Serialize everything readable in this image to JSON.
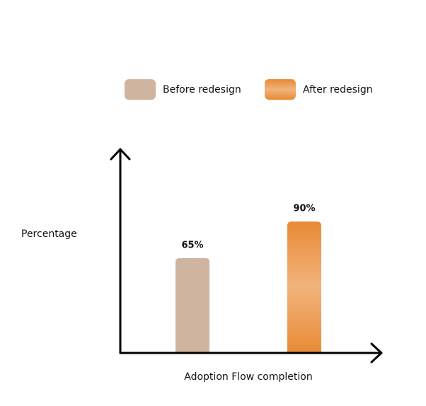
{
  "chart_data": {
    "type": "bar",
    "x_label": "Adoption Flow completion",
    "y_label": "Percentage",
    "categories": [
      null
    ],
    "series": [
      {
        "name": "Before redesign",
        "color": "#cfb5a0",
        "values": [
          65
        ],
        "value_labels": [
          "65%"
        ]
      },
      {
        "name": "After redesign",
        "color": "#e98a35",
        "values": [
          90
        ],
        "value_labels": [
          "90%"
        ]
      }
    ],
    "ylim": [
      0,
      140
    ],
    "legend": "top",
    "grid": false
  }
}
